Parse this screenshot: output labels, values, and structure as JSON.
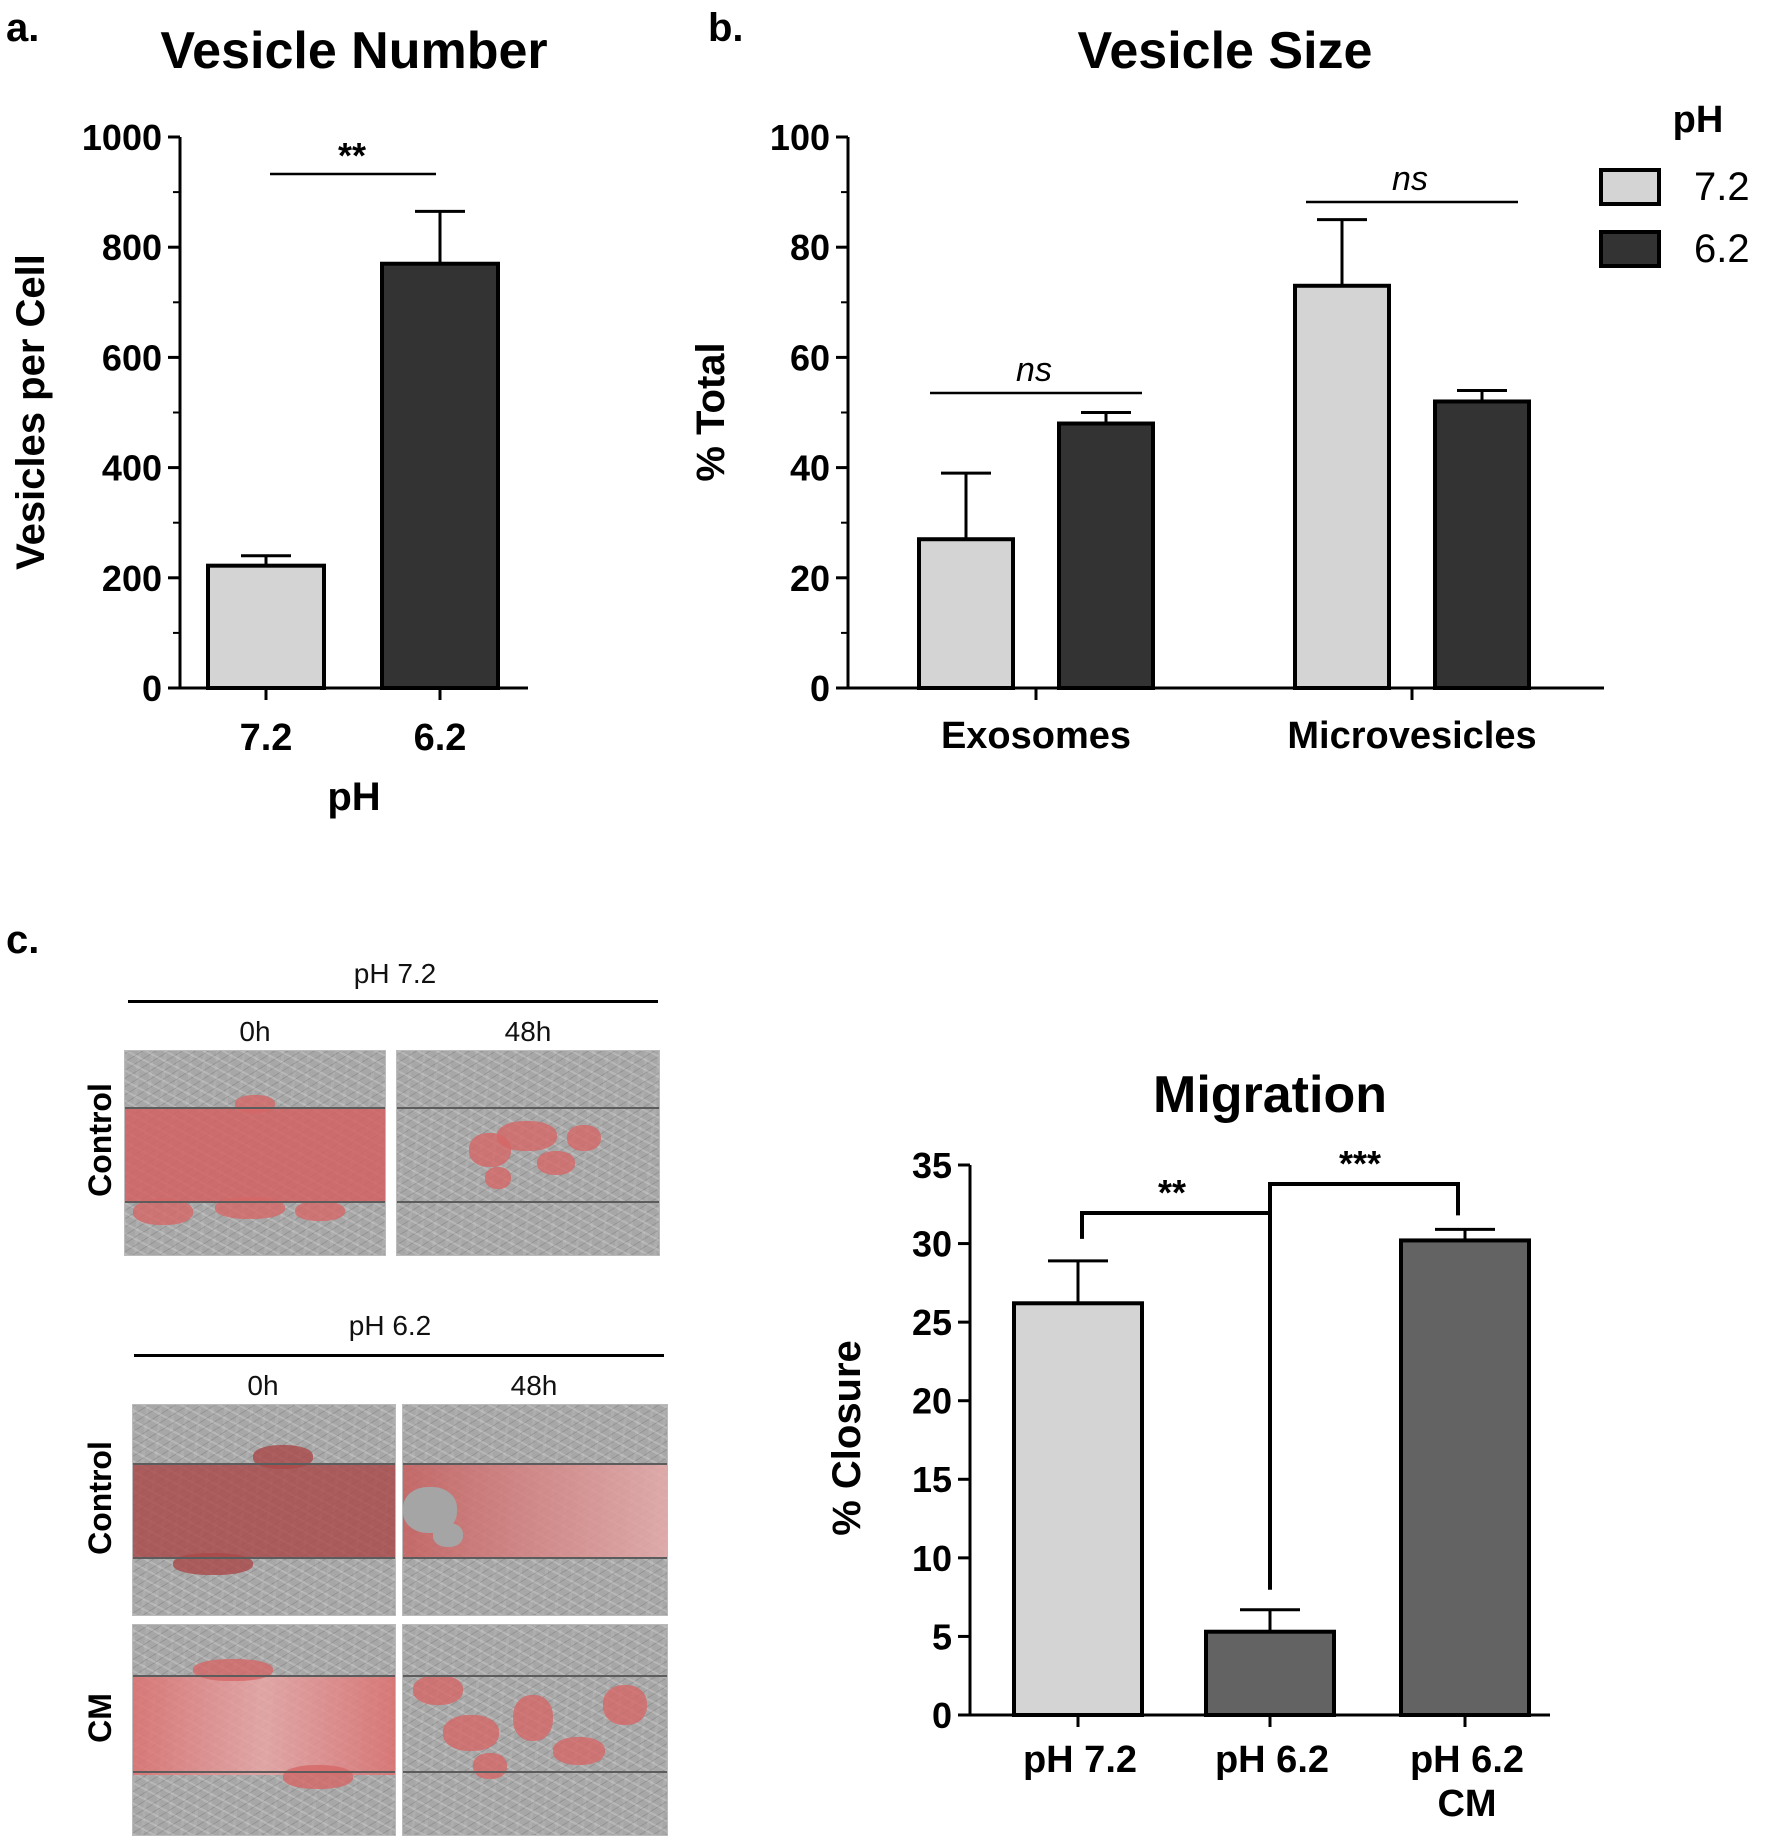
{
  "panel_letters": {
    "a": "a.",
    "b": "b.",
    "c": "c."
  },
  "chart_data": [
    {
      "id": "vesicle-number",
      "type": "bar",
      "title": "Vesicle Number",
      "xlabel": "pH",
      "ylabel": "Vesicles per Cell",
      "ylim": [
        0,
        1000
      ],
      "yticks": [
        "0",
        "200",
        "400",
        "600",
        "800",
        "1000"
      ],
      "categories": [
        "7.2",
        "6.2"
      ],
      "values": [
        222,
        770
      ],
      "errors": [
        18,
        95
      ],
      "colors": [
        "#d4d4d4",
        "#333333"
      ],
      "significance": "**"
    },
    {
      "id": "vesicle-size",
      "type": "bar",
      "title": "Vesicle Size",
      "xlabel": "",
      "ylabel": "% Total",
      "ylim": [
        0,
        100
      ],
      "yticks": [
        "0",
        "20",
        "40",
        "60",
        "80",
        "100"
      ],
      "categories": [
        "Exosomes",
        "Microvesicles"
      ],
      "series": [
        {
          "name": "7.2",
          "values": [
            27,
            73
          ],
          "errors": [
            12,
            12
          ],
          "color": "#d4d4d4"
        },
        {
          "name": "6.2",
          "values": [
            48,
            52
          ],
          "errors": [
            2,
            2
          ],
          "color": "#333333"
        }
      ],
      "legend": {
        "title": "pH",
        "position": "top-right"
      },
      "significance": [
        "ns",
        "ns"
      ]
    },
    {
      "id": "migration",
      "type": "bar",
      "title": "Migration",
      "xlabel": "",
      "ylabel": "% Closure",
      "ylim": [
        0,
        35
      ],
      "yticks": [
        "0",
        "5",
        "10",
        "15",
        "20",
        "25",
        "30",
        "35"
      ],
      "categories": [
        "pH 7.2",
        "pH 6.2",
        "pH 6.2 CM"
      ],
      "category_lines": [
        [
          "pH 7.2"
        ],
        [
          "pH 6.2"
        ],
        [
          "pH 6.2",
          "CM"
        ]
      ],
      "values": [
        26.2,
        5.3,
        30.2
      ],
      "errors": [
        2.7,
        1.4,
        0.7
      ],
      "colors": [
        "#d4d4d4",
        "#636363",
        "#636363"
      ],
      "significance": [
        "**",
        "***"
      ]
    }
  ],
  "micrographs": {
    "group_ph72": {
      "title": "pH 7.2",
      "col0": "0h",
      "col1": "48h",
      "row": "Control"
    },
    "group_ph62": {
      "title": "pH 6.2",
      "col0": "0h",
      "col1": "48h",
      "row_control": "Control",
      "row_cm": "CM"
    }
  }
}
